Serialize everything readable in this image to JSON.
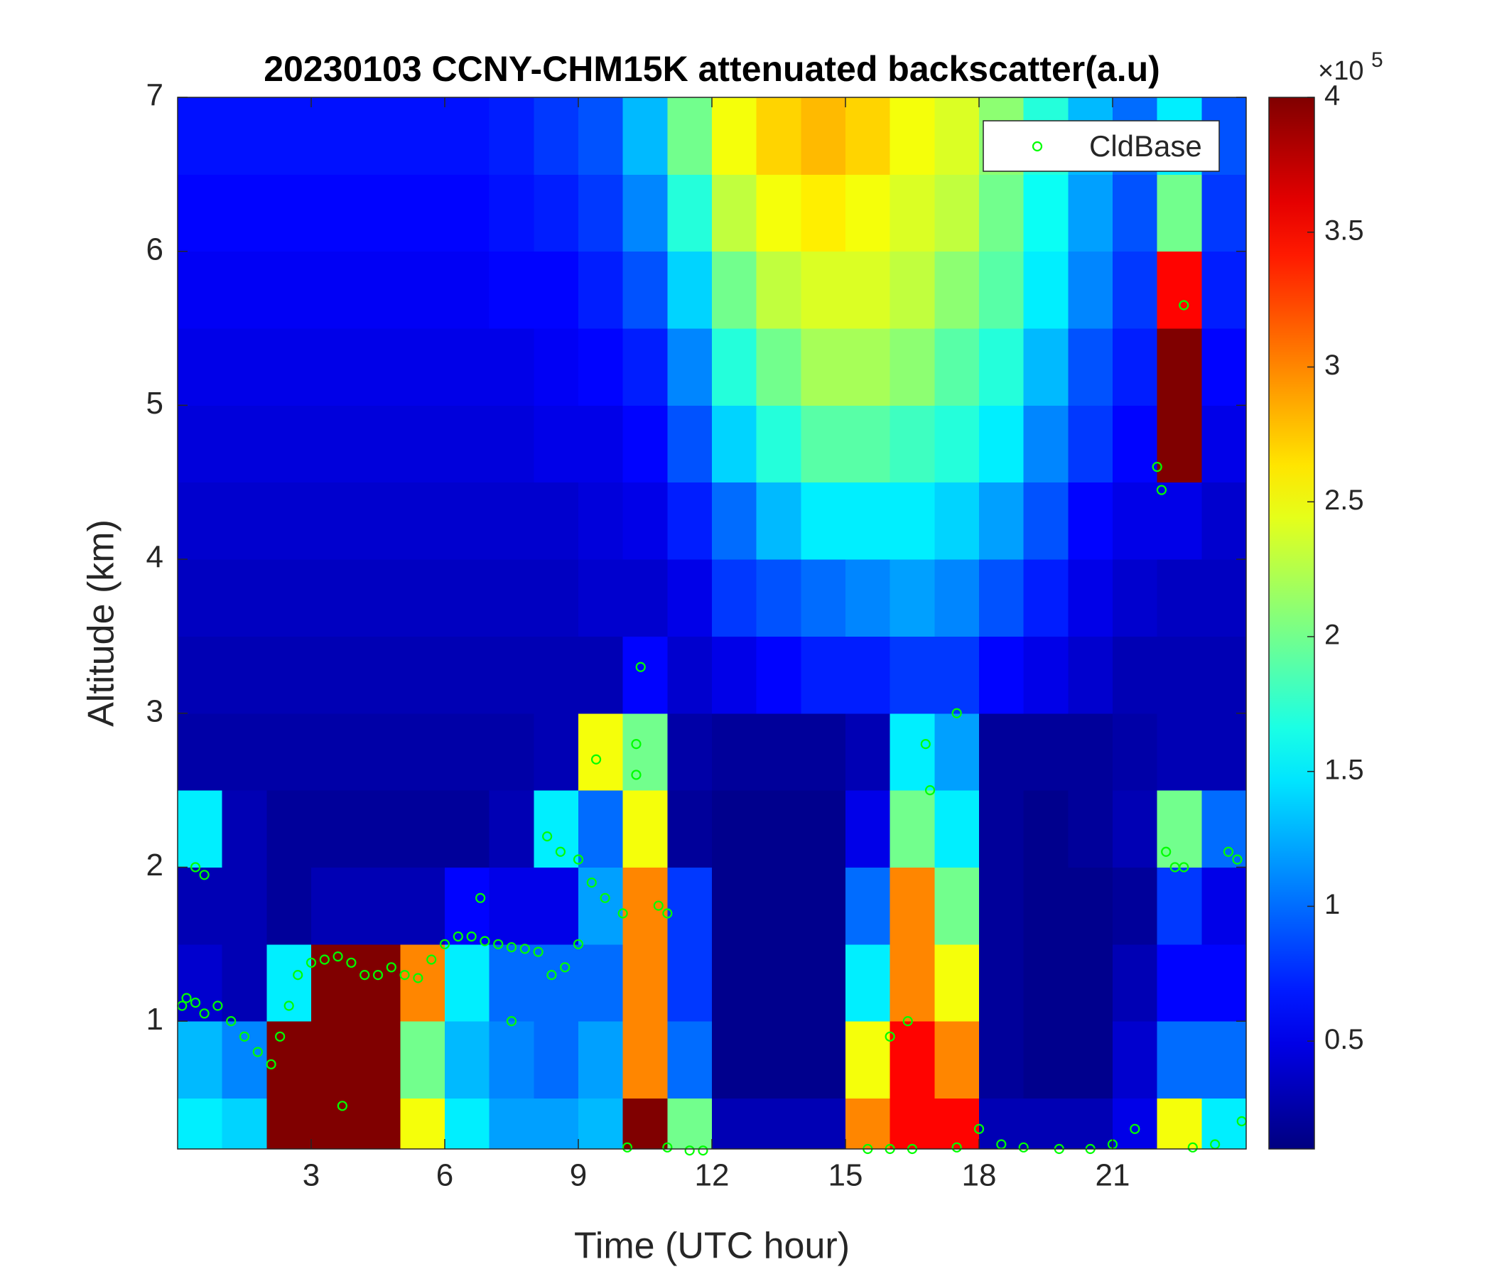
{
  "chart_data": {
    "type": "heatmap",
    "title": "20230103 CCNY-CHM15K attenuated backscatter(a.u)",
    "x_label": "Time (UTC hour)",
    "y_label": "Altitude (km)",
    "xlim": [
      0,
      24
    ],
    "ylim": [
      0.17,
      7
    ],
    "xticks": [
      3,
      6,
      9,
      12,
      15,
      18,
      21
    ],
    "yticks": [
      1,
      2,
      3,
      4,
      5,
      6,
      7
    ],
    "colormap": "jet",
    "clim": [
      0.1,
      4
    ],
    "colorbar_ticks": [
      0.5,
      1,
      1.5,
      2,
      2.5,
      3,
      3.5,
      4
    ],
    "colorbar_scale": {
      "base": "×10",
      "exponent": 5
    },
    "x_edges": [
      0,
      1,
      2,
      3,
      4,
      5,
      6,
      7,
      8,
      9,
      10,
      11,
      12,
      13,
      14,
      15,
      16,
      17,
      18,
      19,
      20,
      21,
      22,
      23,
      24
    ],
    "y_edges": [
      0.17,
      0.5,
      1,
      1.5,
      2,
      2.5,
      3,
      3.5,
      4,
      4.5,
      5,
      5.5,
      6,
      6.5,
      7
    ],
    "z": [
      [
        1.5,
        1.4,
        4,
        4,
        4,
        2.5,
        1.5,
        1.2,
        1.2,
        1.3,
        4,
        2,
        0.3,
        0.3,
        0.3,
        3,
        3.5,
        3.5,
        0.3,
        0.3,
        0.3,
        0.5,
        2.5,
        1.5
      ],
      [
        1.3,
        1.1,
        4,
        4,
        4,
        2,
        1.3,
        1.1,
        1,
        1.2,
        3,
        1,
        0.15,
        0.15,
        0.15,
        2.5,
        3.5,
        3,
        0.2,
        0.15,
        0.15,
        0.4,
        1,
        1
      ],
      [
        0.4,
        0.3,
        1.5,
        4,
        4,
        3,
        1.5,
        1,
        1,
        1,
        3,
        0.8,
        0.15,
        0.15,
        0.15,
        1.5,
        3,
        2.5,
        0.2,
        0.15,
        0.15,
        0.3,
        0.6,
        0.6
      ],
      [
        0.3,
        0.3,
        0.2,
        0.3,
        0.3,
        0.3,
        0.6,
        0.5,
        0.5,
        1.2,
        3,
        0.8,
        0.15,
        0.15,
        0.15,
        1,
        3,
        2,
        0.2,
        0.15,
        0.15,
        0.2,
        0.8,
        0.5
      ],
      [
        1.5,
        0.3,
        0.2,
        0.2,
        0.2,
        0.2,
        0.2,
        0.3,
        1.5,
        1,
        2.5,
        0.2,
        0.15,
        0.15,
        0.15,
        0.5,
        2,
        1.5,
        0.2,
        0.15,
        0.2,
        0.3,
        2,
        1
      ],
      [
        0.25,
        0.25,
        0.25,
        0.25,
        0.25,
        0.25,
        0.25,
        0.25,
        0.3,
        2.5,
        2,
        0.25,
        0.2,
        0.2,
        0.2,
        0.3,
        1.5,
        1.2,
        0.2,
        0.2,
        0.2,
        0.25,
        0.3,
        0.3
      ],
      [
        0.3,
        0.3,
        0.3,
        0.3,
        0.3,
        0.3,
        0.3,
        0.3,
        0.3,
        0.3,
        0.6,
        0.4,
        0.5,
        0.6,
        0.7,
        0.7,
        0.8,
        0.8,
        0.6,
        0.5,
        0.4,
        0.3,
        0.3,
        0.3
      ],
      [
        0.35,
        0.35,
        0.35,
        0.35,
        0.35,
        0.35,
        0.35,
        0.35,
        0.35,
        0.4,
        0.4,
        0.5,
        0.8,
        0.9,
        1,
        1.1,
        1.2,
        1.1,
        0.9,
        0.7,
        0.5,
        0.4,
        0.35,
        0.35
      ],
      [
        0.4,
        0.4,
        0.4,
        0.4,
        0.4,
        0.4,
        0.4,
        0.4,
        0.4,
        0.45,
        0.5,
        0.7,
        1,
        1.3,
        1.5,
        1.5,
        1.5,
        1.4,
        1.2,
        0.9,
        0.6,
        0.5,
        0.5,
        0.4
      ],
      [
        0.45,
        0.45,
        0.45,
        0.45,
        0.45,
        0.45,
        0.45,
        0.45,
        0.5,
        0.5,
        0.6,
        0.9,
        1.4,
        1.7,
        1.9,
        1.9,
        1.8,
        1.7,
        1.5,
        1.1,
        0.8,
        0.6,
        4,
        0.5
      ],
      [
        0.5,
        0.5,
        0.5,
        0.5,
        0.5,
        0.5,
        0.5,
        0.5,
        0.55,
        0.6,
        0.7,
        1.1,
        1.7,
        2,
        2.2,
        2.2,
        2.1,
        1.9,
        1.7,
        1.3,
        0.9,
        0.7,
        4,
        0.6
      ],
      [
        0.55,
        0.55,
        0.55,
        0.55,
        0.55,
        0.55,
        0.55,
        0.6,
        0.6,
        0.7,
        0.9,
        1.4,
        2,
        2.3,
        2.4,
        2.4,
        2.3,
        2.1,
        1.9,
        1.5,
        1.1,
        0.8,
        3.5,
        0.7
      ],
      [
        0.6,
        0.6,
        0.6,
        0.6,
        0.6,
        0.6,
        0.6,
        0.65,
        0.7,
        0.8,
        1.1,
        1.7,
        2.3,
        2.5,
        2.6,
        2.5,
        2.4,
        2.3,
        2,
        1.6,
        1.2,
        0.9,
        2,
        0.8
      ],
      [
        0.65,
        0.65,
        0.65,
        0.65,
        0.65,
        0.65,
        0.65,
        0.7,
        0.8,
        0.9,
        1.3,
        2,
        2.5,
        2.7,
        2.8,
        2.7,
        2.5,
        2.4,
        2.1,
        1.7,
        1.3,
        1,
        1.5,
        0.9
      ]
    ],
    "legend_position": "upper right",
    "series": [
      {
        "name": "CldBase",
        "type": "scatter",
        "color": "#00ff00",
        "x": [
          0.1,
          0.2,
          0.4,
          0.6,
          0.9,
          1.2,
          1.5,
          1.8,
          2.1,
          2.3,
          2.5,
          2.7,
          3.0,
          3.3,
          3.6,
          3.9,
          4.2,
          4.5,
          4.8,
          5.1,
          5.4,
          5.7,
          6.0,
          6.3,
          6.6,
          6.9,
          7.2,
          7.5,
          7.8,
          8.1,
          8.4,
          8.7,
          9.0,
          0.4,
          0.6,
          3.7,
          8.3,
          8.6,
          9.0,
          9.3,
          9.6,
          10.0,
          9.4,
          10.3,
          10.3,
          10.4,
          10.8,
          11.0,
          10.1,
          11.0,
          11.5,
          11.8,
          15.5,
          16.0,
          16.5,
          16.0,
          16.4,
          16.8,
          16.9,
          17.5,
          17.5,
          18.0,
          18.5,
          19.0,
          19.8,
          20.5,
          21.0,
          21.5,
          22.0,
          22.1,
          22.6,
          22.2,
          22.4,
          22.6,
          22.8,
          23.3,
          23.6,
          23.8,
          23.9,
          6.8,
          7.5
        ],
        "y": [
          1.1,
          1.15,
          1.12,
          1.05,
          1.1,
          1.0,
          0.9,
          0.8,
          0.72,
          0.9,
          1.1,
          1.3,
          1.38,
          1.4,
          1.42,
          1.38,
          1.3,
          1.3,
          1.35,
          1.3,
          1.28,
          1.4,
          1.5,
          1.55,
          1.55,
          1.52,
          1.5,
          1.48,
          1.47,
          1.45,
          1.3,
          1.35,
          1.5,
          2.0,
          1.95,
          0.45,
          2.2,
          2.1,
          2.05,
          1.9,
          1.8,
          1.7,
          2.7,
          2.6,
          2.8,
          3.3,
          1.75,
          1.7,
          0.18,
          0.18,
          0.16,
          0.16,
          0.17,
          0.17,
          0.17,
          0.9,
          1.0,
          2.8,
          2.5,
          3.0,
          0.18,
          0.3,
          0.2,
          0.18,
          0.17,
          0.17,
          0.2,
          0.3,
          4.6,
          4.45,
          5.65,
          2.1,
          2.0,
          2.0,
          0.18,
          0.2,
          2.1,
          2.05,
          0.35,
          1.8,
          1.0
        ]
      }
    ]
  }
}
